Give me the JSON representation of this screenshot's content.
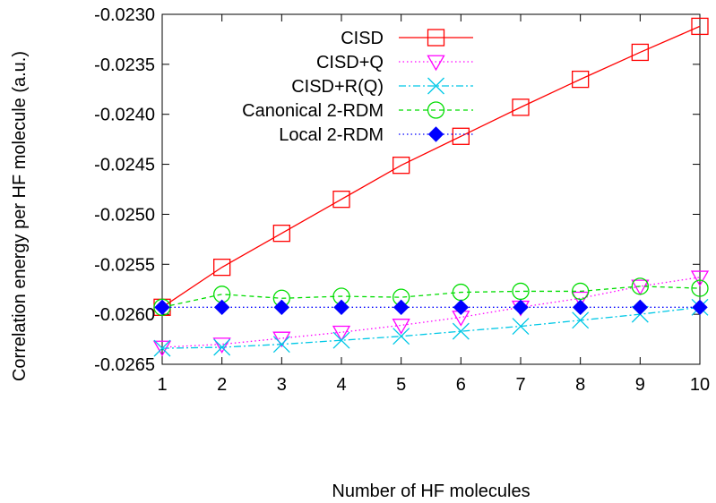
{
  "chart_data": {
    "type": "line",
    "title": "",
    "xlabel": "Number of HF molecules",
    "ylabel": "Correlation energy per HF molecule (a.u.)",
    "xlim": [
      1,
      10
    ],
    "ylim": [
      -0.0265,
      -0.023
    ],
    "x_ticks": [
      1,
      2,
      3,
      4,
      5,
      6,
      7,
      8,
      9,
      10
    ],
    "y_ticks": [
      -0.023,
      -0.0235,
      -0.024,
      -0.0245,
      -0.025,
      -0.0255,
      -0.026,
      -0.0265
    ],
    "y_tick_labels": [
      "-0.0230",
      "-0.0235",
      "-0.0240",
      "-0.0245",
      "-0.0250",
      "-0.0255",
      "-0.0260",
      "-0.0265"
    ],
    "grid": false,
    "legend_position": "top-right",
    "x": [
      1,
      2,
      3,
      4,
      5,
      6,
      7,
      8,
      9,
      10
    ],
    "series": [
      {
        "name": "CISD",
        "color": "#ff0000",
        "line_style": "solid",
        "marker": "square-open",
        "values": [
          -0.02593,
          -0.02553,
          -0.02519,
          -0.02485,
          -0.02451,
          -0.02422,
          -0.02393,
          -0.02365,
          -0.02338,
          -0.02312
        ]
      },
      {
        "name": "CISD+Q",
        "color": "#ff00ff",
        "line_style": "dotted",
        "marker": "triangle-down-open",
        "values": [
          -0.02633,
          -0.0263,
          -0.02624,
          -0.02618,
          -0.02611,
          -0.02603,
          -0.02593,
          -0.02584,
          -0.02572,
          -0.02563
        ]
      },
      {
        "name": "CISD+R(Q)",
        "color": "#00c8e6",
        "line_style": "dashdot",
        "marker": "x",
        "values": [
          -0.02634,
          -0.02633,
          -0.0263,
          -0.02626,
          -0.02622,
          -0.02617,
          -0.02612,
          -0.02606,
          -0.026,
          -0.02593
        ]
      },
      {
        "name": "Canonical 2-RDM",
        "color": "#00dd00",
        "line_style": "dashed",
        "marker": "circle-open",
        "values": [
          -0.02593,
          -0.0258,
          -0.02584,
          -0.02582,
          -0.02583,
          -0.02578,
          -0.02577,
          -0.02577,
          -0.02572,
          -0.02574
        ]
      },
      {
        "name": "Local 2-RDM",
        "color": "#0000ff",
        "line_style": "dotted",
        "marker": "diamond-filled",
        "values": [
          -0.02593,
          -0.02593,
          -0.02593,
          -0.02593,
          -0.02593,
          -0.02593,
          -0.02593,
          -0.02593,
          -0.02593,
          -0.02593
        ]
      }
    ]
  }
}
